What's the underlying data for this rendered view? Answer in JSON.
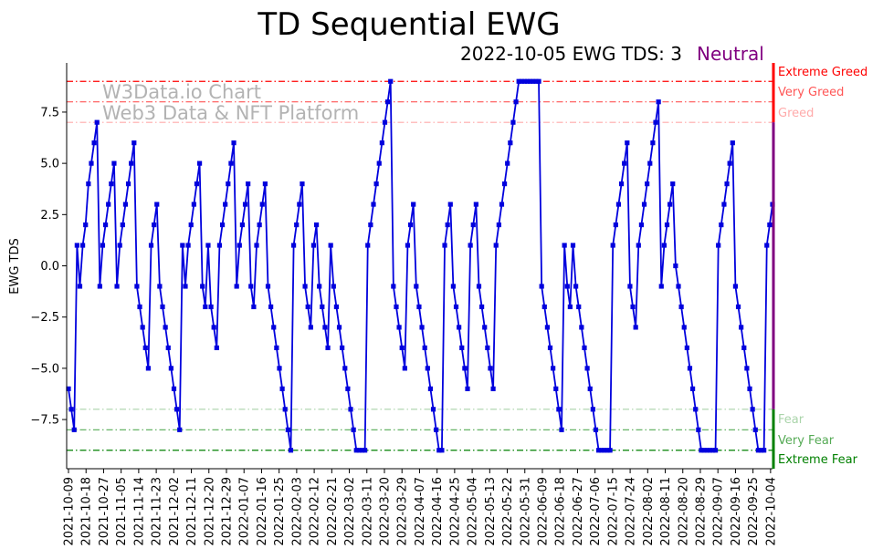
{
  "chart_data": {
    "type": "line",
    "title": "TD Sequential EWG",
    "subtitle": "2022-10-05 EWG TDS: 3",
    "status": "Neutral",
    "ylabel": "EWG TDS",
    "xlabel": "",
    "ylim": [
      -9.9,
      9.9
    ],
    "grid": false,
    "yticks": [
      -7.5,
      -5.0,
      -2.5,
      0.0,
      2.5,
      5.0,
      7.5
    ],
    "ytick_labels": [
      "−7.5",
      "−5.0",
      "−2.5",
      "0.0",
      "2.5",
      "5.0",
      "7.5"
    ],
    "xticks": [
      "2021-10-09",
      "2021-10-18",
      "2021-10-27",
      "2021-11-05",
      "2021-11-14",
      "2021-11-23",
      "2021-12-02",
      "2021-12-11",
      "2021-12-20",
      "2021-12-29",
      "2022-01-07",
      "2022-01-16",
      "2022-01-25",
      "2022-02-03",
      "2022-02-12",
      "2022-02-21",
      "2022-03-02",
      "2022-03-11",
      "2022-03-20",
      "2022-03-29",
      "2022-04-07",
      "2022-04-16",
      "2022-04-25",
      "2022-05-04",
      "2022-05-13",
      "2022-05-22",
      "2022-05-31",
      "2022-06-09",
      "2022-06-18",
      "2022-06-27",
      "2022-07-06",
      "2022-07-15",
      "2022-07-24",
      "2022-08-02",
      "2022-08-11",
      "2022-08-20",
      "2022-08-29",
      "2022-09-07",
      "2022-09-16",
      "2022-09-25",
      "2022-10-04"
    ],
    "watermark": [
      "W3Data.io Chart",
      "Web3 Data & NFT Platform"
    ],
    "levels": [
      {
        "name": "Extreme Greed",
        "value": 9,
        "color": "#ff0000"
      },
      {
        "name": "Very Greed",
        "value": 8,
        "color": "#ff5555"
      },
      {
        "name": "Greed",
        "value": 7,
        "color": "#ffaaaa"
      },
      {
        "name": "Fear",
        "value": -7,
        "color": "#aad4aa"
      },
      {
        "name": "Very Fear",
        "value": -8,
        "color": "#55aa55"
      },
      {
        "name": "Extreme Fear",
        "value": -9,
        "color": "#008000"
      }
    ],
    "colors": {
      "series": "#0000dd",
      "status": "#800080",
      "greed_bar": "#ff0000",
      "fear_bar": "#008000",
      "neutral_bar": "#800080"
    },
    "x_start": "2021-10-09",
    "x_end": "2022-10-05",
    "series": [
      {
        "values": [
          -6,
          -7,
          -8,
          1,
          -1,
          1,
          2,
          4,
          5,
          6,
          7,
          -1,
          1,
          2,
          3,
          4,
          5,
          -1,
          1,
          2,
          3,
          4,
          5,
          6,
          -1,
          -2,
          -3,
          -4,
          -5,
          1,
          2,
          3,
          -1,
          -2,
          -3,
          -4,
          -5,
          -6,
          -7,
          -8,
          1,
          -1,
          1,
          2,
          3,
          4,
          5,
          -1,
          -2,
          1,
          -2,
          -3,
          -4,
          1,
          2,
          3,
          4,
          5,
          6,
          -1,
          1,
          2,
          3,
          4,
          -1,
          -2,
          1,
          2,
          3,
          4,
          -1,
          -2,
          -3,
          -4,
          -5,
          -6,
          -7,
          -8,
          -9,
          1,
          2,
          3,
          4,
          -1,
          -2,
          -3,
          1,
          2,
          -1,
          -2,
          -3,
          -4,
          1,
          -1,
          -2,
          -3,
          -4,
          -5,
          -6,
          -7,
          -8,
          -9,
          -9,
          -9,
          -9,
          1,
          2,
          3,
          4,
          5,
          6,
          7,
          8,
          9,
          -1,
          -2,
          -3,
          -4,
          -5,
          1,
          2,
          3,
          -1,
          -2,
          -3,
          -4,
          -5,
          -6,
          -7,
          -8,
          -9,
          -9,
          1,
          2,
          3,
          -1,
          -2,
          -3,
          -4,
          -5,
          -6,
          1,
          2,
          3,
          -1,
          -2,
          -3,
          -4,
          -5,
          -6,
          1,
          2,
          3,
          4,
          5,
          6,
          7,
          8,
          9,
          9,
          9,
          9,
          9,
          9,
          9,
          9,
          -1,
          -2,
          -3,
          -4,
          -5,
          -6,
          -7,
          -8,
          1,
          -1,
          -2,
          1,
          -1,
          -2,
          -3,
          -4,
          -5,
          -6,
          -7,
          -8,
          -9,
          -9,
          -9,
          -9,
          -9,
          1,
          2,
          3,
          4,
          5,
          6,
          -1,
          -2,
          -3,
          1,
          2,
          3,
          4,
          5,
          6,
          7,
          8,
          -1,
          1,
          2,
          3,
          4,
          0,
          -1,
          -2,
          -3,
          -4,
          -5,
          -6,
          -7,
          -8,
          -9,
          -9,
          -9,
          -9,
          -9,
          -9,
          1,
          2,
          3,
          4,
          5,
          6,
          -1,
          -2,
          -3,
          -4,
          -5,
          -6,
          -7,
          -8,
          -9,
          -9,
          -9,
          1,
          2,
          3
        ]
      }
    ]
  }
}
